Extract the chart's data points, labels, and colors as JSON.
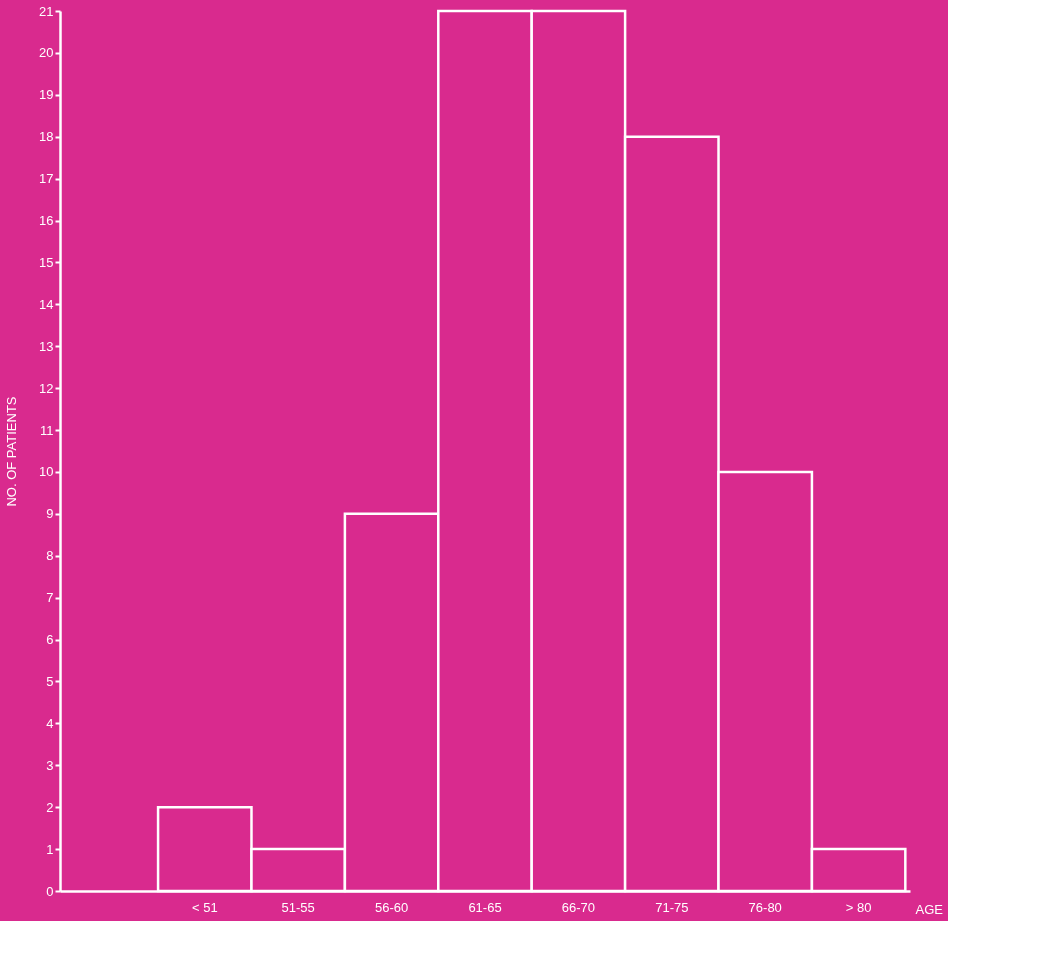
{
  "chart_data": {
    "type": "bar",
    "xlabel": "AGE",
    "ylabel": "NO. OF PATIENTS",
    "categories": [
      null,
      "< 51",
      "51-55",
      "56-60",
      "61-65",
      "66-70",
      "71-75",
      "76-80",
      "> 80"
    ],
    "values": [
      null,
      2,
      1,
      9,
      21,
      21,
      18,
      10,
      1
    ],
    "color": "#ffffff",
    "ylim": [
      0,
      21
    ],
    "yticks": [
      0,
      1,
      2,
      3,
      4,
      5,
      6,
      7,
      8,
      9,
      10,
      11,
      12,
      13,
      14,
      15,
      16,
      17,
      18,
      19,
      20,
      21
    ],
    "grid": false
  }
}
